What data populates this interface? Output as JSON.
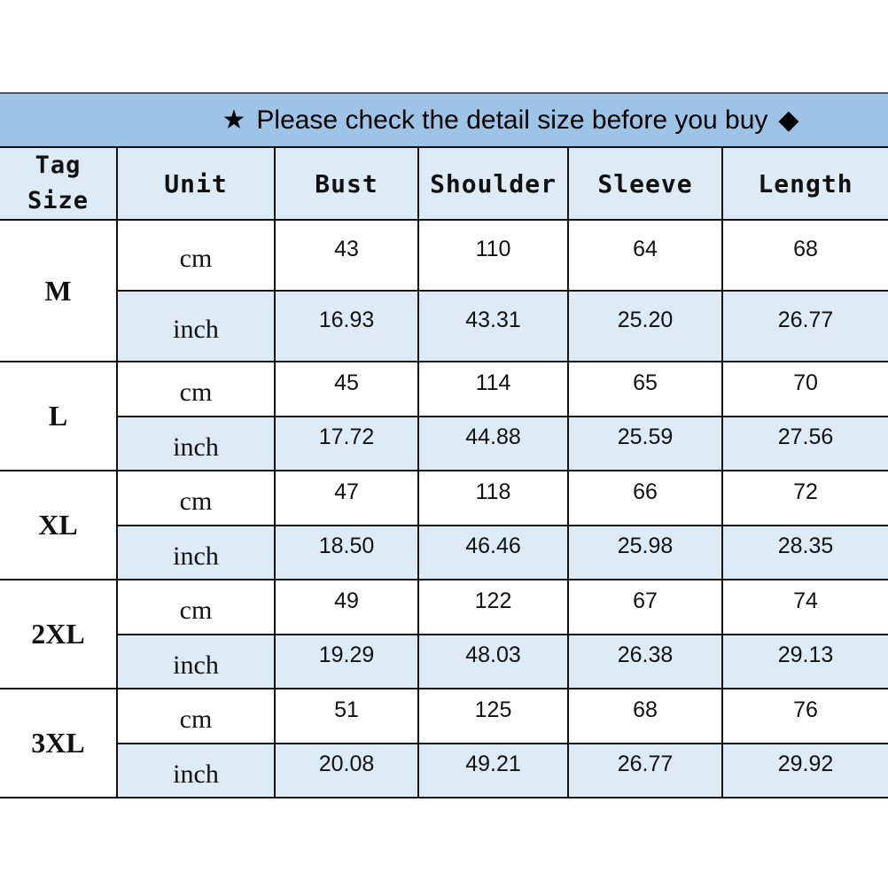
{
  "title": {
    "star_icon": "★",
    "text": "Please check the detail size before you buy",
    "diamond_icon": "◆"
  },
  "colors": {
    "title_bg": "#9dc3e6",
    "alt_row_bg": "#ddebf7"
  },
  "headers": {
    "tag_line1": "Tag",
    "tag_line2": "Size",
    "unit": "Unit",
    "bust": "Bust",
    "shoulder": "Shoulder",
    "sleeve": "Sleeve",
    "length": "Length"
  },
  "sizes": [
    {
      "size": "M",
      "cm": {
        "unit": "cm",
        "values": [
          "43",
          "110",
          "64",
          "68"
        ]
      },
      "inch": {
        "unit": "inch",
        "values": [
          "16.93",
          "43.31",
          "25.20",
          "26.77"
        ]
      }
    },
    {
      "size": "L",
      "cm": {
        "unit": "cm",
        "values": [
          "45",
          "114",
          "65",
          "70"
        ]
      },
      "inch": {
        "unit": "inch",
        "values": [
          "17.72",
          "44.88",
          "25.59",
          "27.56"
        ]
      }
    },
    {
      "size": "XL",
      "cm": {
        "unit": "cm",
        "values": [
          "47",
          "118",
          "66",
          "72"
        ]
      },
      "inch": {
        "unit": "inch",
        "values": [
          "18.50",
          "46.46",
          "25.98",
          "28.35"
        ]
      }
    },
    {
      "size": "2XL",
      "cm": {
        "unit": "cm",
        "values": [
          "49",
          "122",
          "67",
          "74"
        ]
      },
      "inch": {
        "unit": "inch",
        "values": [
          "19.29",
          "48.03",
          "26.38",
          "29.13"
        ]
      }
    },
    {
      "size": "3XL",
      "cm": {
        "unit": "cm",
        "values": [
          "51",
          "125",
          "68",
          "76"
        ]
      },
      "inch": {
        "unit": "inch",
        "values": [
          "20.08",
          "49.21",
          "26.77",
          "29.92"
        ]
      }
    }
  ]
}
